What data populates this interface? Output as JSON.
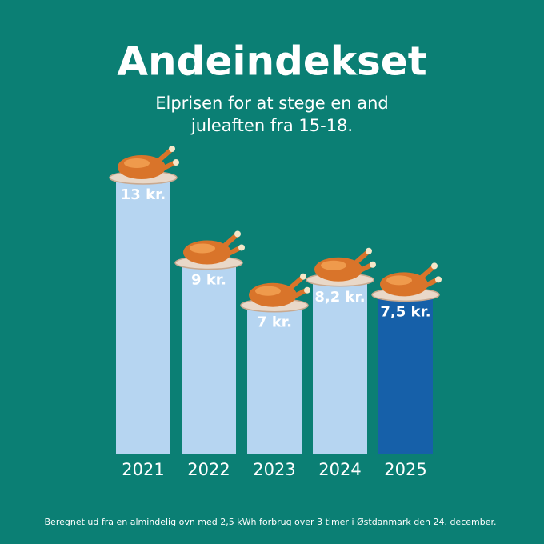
{
  "chart_data": {
    "type": "bar",
    "title": "Andeindekset",
    "subtitle": [
      "Elprisen for at stege en and",
      "juleaften fra 15-18."
    ],
    "categories": [
      "2021",
      "2022",
      "2023",
      "2024",
      "2025"
    ],
    "values": [
      13,
      9,
      7,
      8.2,
      7.5
    ],
    "value_labels": [
      "13 kr.",
      "9 kr.",
      "7 kr.",
      "8,2 kr.",
      "7,5 kr."
    ],
    "colors": [
      "#b6d5f1",
      "#b6d5f1",
      "#b6d5f1",
      "#b6d5f1",
      "#1660a9"
    ],
    "footnote": "Beregnet ud fra en almindelig ovn med 2,5 kWh forbrug over 3 timer i Østdanmark den 24. december."
  }
}
